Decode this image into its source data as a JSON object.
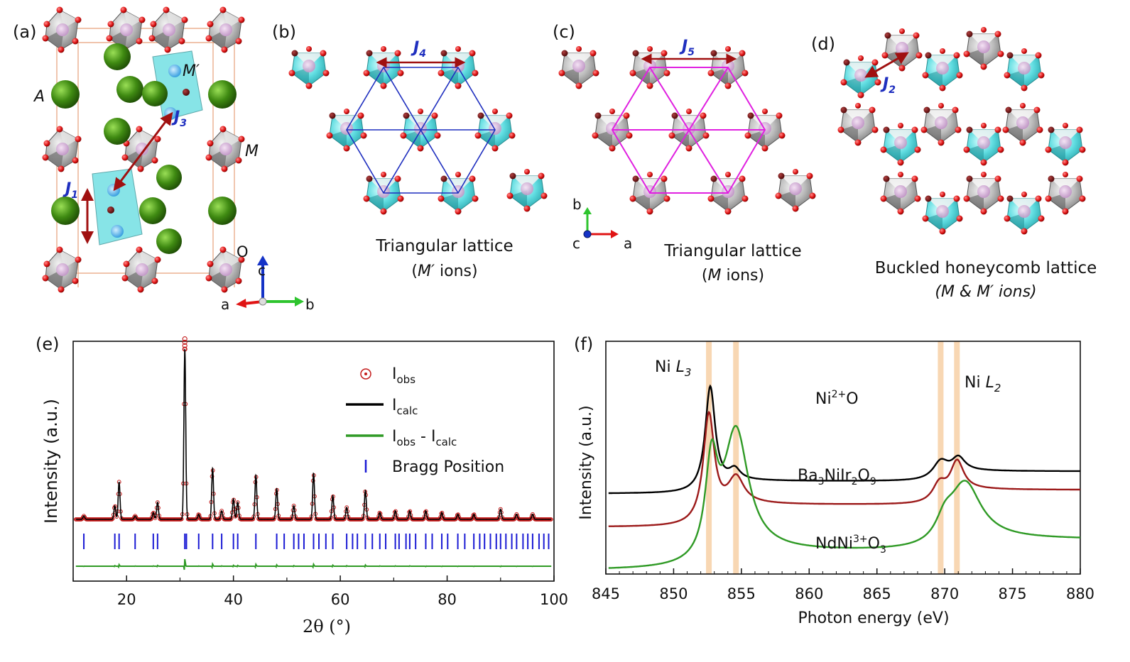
{
  "panels": {
    "a": {
      "tag": "(a)",
      "labels": {
        "A": "A",
        "M_prime": "M′",
        "M": "M",
        "O": "O",
        "J1": "J",
        "J1_sub": "1",
        "J3": "J",
        "J3_sub": "3"
      },
      "axes": {
        "c": "c",
        "a": "a",
        "b": "b"
      },
      "colors": {
        "A_atom": "#3f8a12",
        "O_atom": "#e01414",
        "M_oct": "#9a9a9a",
        "Mp_oct": "#45d4d8",
        "arrow": "#a01010"
      }
    },
    "b": {
      "tag": "(b)",
      "coupling": "J",
      "coupling_sub": "4",
      "caption_line1": "Triangular lattice",
      "caption_line2_ital": "M′",
      "caption_line2_rest": " ions)",
      "caption_line2_open": "(",
      "line_color": "#1f2fbf"
    },
    "c": {
      "tag": "(c)",
      "coupling": "J",
      "coupling_sub": "5",
      "caption_line1": "Triangular lattice",
      "caption_line2_ital": "M",
      "caption_line2_rest": " ions)",
      "caption_line2_open": "(",
      "axes": {
        "b": "b",
        "c": "c",
        "a": "a"
      },
      "line_color": "#e020e0"
    },
    "d": {
      "tag": "(d)",
      "coupling": "J",
      "coupling_sub": "2",
      "caption_line1": "Buckled honeycomb lattice",
      "caption_line2": "(M & M′ ions)"
    },
    "e": {
      "tag": "(e)",
      "ylabel": "Intensity (a.u.)",
      "xlabel": "2θ (°)",
      "xticks": [
        "20",
        "40",
        "60",
        "80",
        "100"
      ],
      "legend": {
        "obs": "I",
        "obs_sub": "obs",
        "calc": "I",
        "calc_sub": "calc",
        "diff_a": "I",
        "diff_a_sub": "obs",
        "diff_mid": " - I",
        "diff_b_sub": "calc",
        "bragg": "Bragg Position"
      }
    },
    "f": {
      "tag": "(f)",
      "ylabel": "Intensity (a.u.)",
      "xlabel": "Photon energy (eV)",
      "xticks": [
        "845",
        "850",
        "855",
        "860",
        "865",
        "870",
        "875",
        "880"
      ],
      "label_L3": "Ni ",
      "label_L3_ital": "L",
      "label_L3_sub": "3",
      "label_L2": "Ni ",
      "label_L2_ital": "L",
      "label_L2_sub": "2",
      "spec1": {
        "pre": "Ni",
        "sup": "2+",
        "post": "O"
      },
      "spec2": {
        "pre": "Ba",
        "s1": "3",
        "mid": "NiIr",
        "s2": "2",
        "mid2": "O",
        "s3": "9"
      },
      "spec3": {
        "pre": "NdNi",
        "sup": "3+",
        "post": "O",
        "sub": "3"
      }
    }
  },
  "chart_data": [
    {
      "type": "scatter",
      "panel": "e",
      "title": "",
      "xlabel": "2θ (°)",
      "ylabel": "Intensity (a.u.)",
      "xlim": [
        10,
        100
      ],
      "series_names": [
        "Iobs",
        "Icalc",
        "Iobs - Icalc",
        "Bragg Position"
      ],
      "baseline": 0.05,
      "peaks": [
        {
          "x": 12.0,
          "h": 0.02
        },
        {
          "x": 17.8,
          "h": 0.08
        },
        {
          "x": 18.6,
          "h": 0.22
        },
        {
          "x": 21.6,
          "h": 0.02
        },
        {
          "x": 25.0,
          "h": 0.04
        },
        {
          "x": 25.8,
          "h": 0.1
        },
        {
          "x": 30.9,
          "h": 1.0
        },
        {
          "x": 33.5,
          "h": 0.03
        },
        {
          "x": 36.1,
          "h": 0.3
        },
        {
          "x": 37.8,
          "h": 0.05
        },
        {
          "x": 40.0,
          "h": 0.12
        },
        {
          "x": 40.8,
          "h": 0.1
        },
        {
          "x": 44.2,
          "h": 0.26
        },
        {
          "x": 48.1,
          "h": 0.18
        },
        {
          "x": 51.3,
          "h": 0.08
        },
        {
          "x": 55.0,
          "h": 0.27
        },
        {
          "x": 58.6,
          "h": 0.14
        },
        {
          "x": 61.2,
          "h": 0.07
        },
        {
          "x": 64.7,
          "h": 0.17
        },
        {
          "x": 67.4,
          "h": 0.04
        },
        {
          "x": 70.3,
          "h": 0.05
        },
        {
          "x": 73.0,
          "h": 0.05
        },
        {
          "x": 76.0,
          "h": 0.05
        },
        {
          "x": 79.0,
          "h": 0.04
        },
        {
          "x": 82.0,
          "h": 0.03
        },
        {
          "x": 85.0,
          "h": 0.03
        },
        {
          "x": 90.0,
          "h": 0.06
        },
        {
          "x": 93.0,
          "h": 0.03
        },
        {
          "x": 96.0,
          "h": 0.03
        }
      ],
      "obs_peak_top": 1.06,
      "bragg_positions": [
        12.0,
        17.8,
        18.6,
        21.6,
        25.0,
        25.8,
        30.9,
        31.2,
        33.5,
        36.1,
        37.8,
        40.0,
        40.8,
        44.2,
        48.1,
        49.5,
        51.3,
        52.2,
        53.2,
        55.0,
        56.0,
        57.3,
        58.6,
        61.2,
        62.3,
        63.2,
        64.7,
        66.0,
        67.4,
        68.5,
        70.3,
        71.0,
        72.3,
        73.0,
        74.1,
        76.0,
        77.2,
        79.0,
        80.1,
        82.0,
        83.3,
        85.0,
        86.1,
        87.0,
        88.1,
        89.2,
        90.0,
        91.0,
        92.1,
        93.0,
        94.2,
        95.1,
        96.0,
        97.2,
        98.1,
        99.0
      ],
      "legend": "top-right"
    },
    {
      "type": "line",
      "panel": "f",
      "title": "",
      "xlabel": "Photon energy (eV)",
      "ylabel": "Intensity (a.u.)",
      "xlim": [
        845,
        880
      ],
      "highlight_x": [
        852.6,
        854.6,
        869.7,
        870.9
      ],
      "highlight_color": "#f5c99a",
      "series": [
        {
          "name": "Ni2+O",
          "color": "#000000",
          "base": 0.27,
          "step_post_L3": 0.1,
          "step_post_L2": 0.18,
          "peaks": [
            {
              "x": 852.7,
              "h": 0.84,
              "w": 0.45
            },
            {
              "x": 854.5,
              "h": 0.09,
              "w": 0.5
            },
            {
              "x": 869.7,
              "h": 0.14,
              "w": 0.7
            },
            {
              "x": 871.0,
              "h": 0.12,
              "w": 0.6
            }
          ]
        },
        {
          "name": "Ba3NiIr2O9",
          "color": "#9c1a1a",
          "base": 0.0,
          "step_post_L3": 0.18,
          "step_post_L2": 0.3,
          "peaks": [
            {
              "x": 852.6,
              "h": 0.87,
              "w": 0.5
            },
            {
              "x": 854.6,
              "h": 0.22,
              "w": 0.7
            },
            {
              "x": 869.6,
              "h": 0.14,
              "w": 0.6
            },
            {
              "x": 870.9,
              "h": 0.26,
              "w": 0.6
            }
          ]
        },
        {
          "name": "NdNi3+O3",
          "color": "#2f9a25",
          "base": -0.35,
          "step_post_L3": 0.15,
          "step_post_L2": 0.25,
          "peaks": [
            {
              "x": 852.8,
              "h": 0.75,
              "w": 0.55
            },
            {
              "x": 854.6,
              "h": 0.97,
              "w": 1.1
            },
            {
              "x": 870.0,
              "h": 0.16,
              "w": 0.8
            },
            {
              "x": 871.5,
              "h": 0.45,
              "w": 1.4
            }
          ]
        }
      ],
      "ylim": [
        -0.38,
        1.5
      ]
    }
  ]
}
